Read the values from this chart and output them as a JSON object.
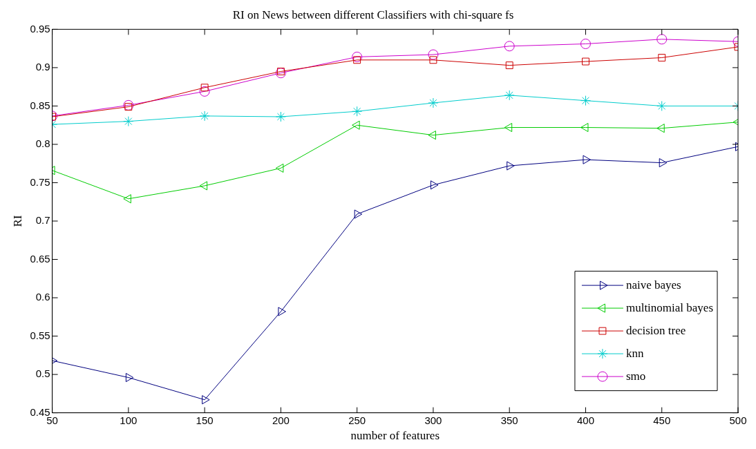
{
  "chart_data": {
    "type": "line",
    "title": "RI on News between different Classifiers with chi-square fs",
    "xlabel": "number of features",
    "ylabel": "RI",
    "x": [
      50,
      100,
      150,
      200,
      250,
      300,
      350,
      400,
      450,
      500
    ],
    "xlim": [
      50,
      500
    ],
    "xticks": [
      50,
      100,
      150,
      200,
      250,
      300,
      350,
      400,
      450,
      500
    ],
    "ylim": [
      0.45,
      0.95
    ],
    "yticks": [
      0.45,
      0.5,
      0.55,
      0.6,
      0.65,
      0.7,
      0.75,
      0.8,
      0.85,
      0.9,
      0.95
    ],
    "grid": false,
    "legend": "bottom right",
    "line_style": "solid",
    "series": [
      {
        "name": "naive bayes",
        "color": "#00007f",
        "marker": "triangle-right",
        "values": [
          0.518,
          0.496,
          0.467,
          0.582,
          0.709,
          0.747,
          0.772,
          0.78,
          0.776,
          0.797
        ]
      },
      {
        "name": "multinomial bayes",
        "color": "#00cc00",
        "marker": "triangle-left",
        "values": [
          0.766,
          0.729,
          0.746,
          0.769,
          0.825,
          0.812,
          0.822,
          0.822,
          0.821,
          0.829
        ]
      },
      {
        "name": "decision tree",
        "color": "#cc0000",
        "marker": "square",
        "values": [
          0.836,
          0.849,
          0.874,
          0.895,
          0.91,
          0.91,
          0.903,
          0.908,
          0.913,
          0.927
        ]
      },
      {
        "name": "knn",
        "color": "#00cccc",
        "marker": "cross",
        "values": [
          0.826,
          0.83,
          0.837,
          0.836,
          0.843,
          0.854,
          0.864,
          0.857,
          0.85,
          0.85
        ]
      },
      {
        "name": "smo",
        "color": "#cc00cc",
        "marker": "circle",
        "values": [
          0.837,
          0.851,
          0.869,
          0.893,
          0.914,
          0.917,
          0.928,
          0.931,
          0.937,
          0.934
        ]
      }
    ]
  }
}
